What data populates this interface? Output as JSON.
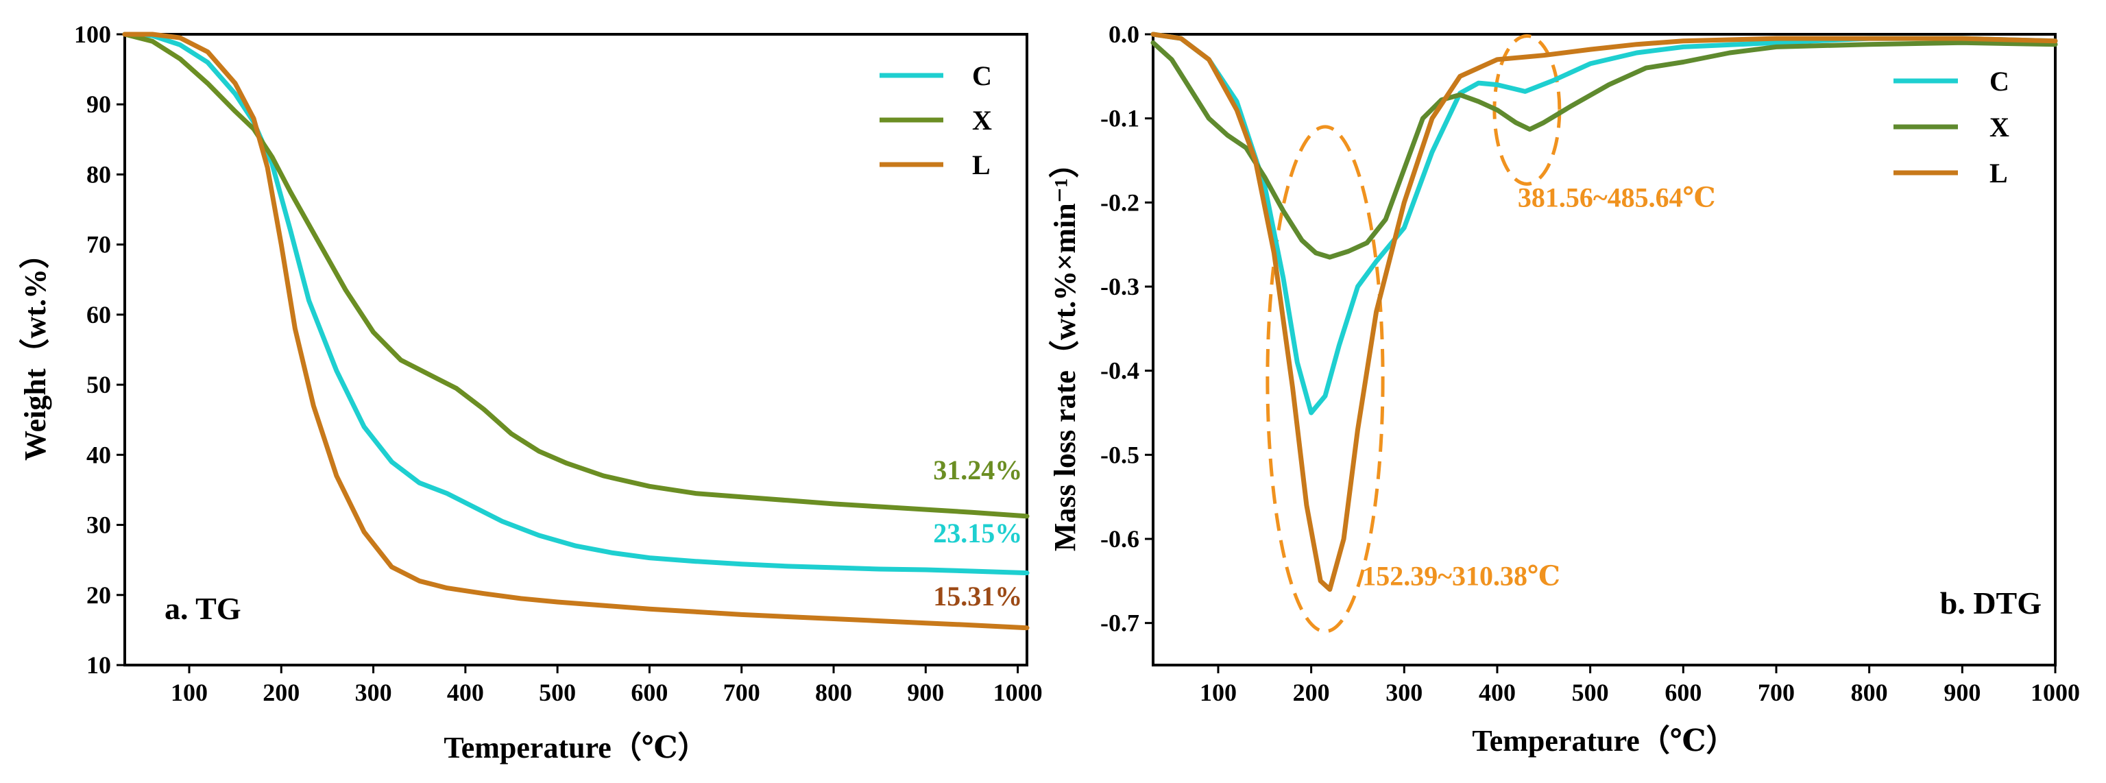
{
  "chart_data": [
    {
      "type": "line",
      "panel_label": "a. TG",
      "xlabel": "Temperature（℃）",
      "ylabel": "Weight（wt.%）",
      "xlim": [
        30,
        1010
      ],
      "ylim": [
        10,
        100
      ],
      "xticks": [
        100,
        200,
        300,
        400,
        500,
        600,
        700,
        800,
        900,
        1000
      ],
      "yticks": [
        10,
        20,
        30,
        40,
        50,
        60,
        70,
        80,
        90,
        100
      ],
      "legend_position": "top-right",
      "series": [
        {
          "name": "C",
          "color": "#1ecfd0",
          "x": [
            30,
            60,
            90,
            120,
            150,
            170,
            190,
            210,
            230,
            260,
            290,
            320,
            350,
            380,
            410,
            440,
            480,
            520,
            560,
            600,
            650,
            700,
            750,
            800,
            850,
            900,
            950,
            1010
          ],
          "y": [
            100,
            99.8,
            98.5,
            96,
            91.5,
            87.5,
            81.5,
            72,
            62,
            52,
            44,
            39,
            36,
            34.5,
            32.5,
            30.5,
            28.5,
            27,
            26,
            25.3,
            24.8,
            24.4,
            24.1,
            23.9,
            23.7,
            23.6,
            23.4,
            23.15
          ]
        },
        {
          "name": "X",
          "color": "#6b8e23",
          "x": [
            30,
            60,
            90,
            120,
            150,
            170,
            190,
            210,
            240,
            270,
            300,
            330,
            360,
            390,
            420,
            450,
            480,
            510,
            550,
            600,
            650,
            700,
            750,
            800,
            850,
            900,
            950,
            1010
          ],
          "y": [
            100,
            99,
            96.5,
            93,
            89,
            86.5,
            82.5,
            77.5,
            70.5,
            63.5,
            57.5,
            53.5,
            51.5,
            49.5,
            46.5,
            43,
            40.5,
            38.8,
            37,
            35.5,
            34.5,
            34,
            33.5,
            33,
            32.6,
            32.2,
            31.8,
            31.24
          ]
        },
        {
          "name": "L",
          "color": "#c8791a",
          "x": [
            30,
            60,
            90,
            120,
            150,
            170,
            185,
            200,
            215,
            235,
            260,
            290,
            320,
            350,
            380,
            420,
            460,
            500,
            550,
            600,
            650,
            700,
            750,
            800,
            850,
            900,
            950,
            1010
          ],
          "y": [
            100,
            100,
            99.5,
            97.5,
            93,
            88,
            81,
            70,
            58,
            47,
            37,
            29,
            24,
            22,
            21,
            20.2,
            19.5,
            19,
            18.5,
            18,
            17.6,
            17.2,
            16.9,
            16.6,
            16.3,
            16,
            15.7,
            15.31
          ]
        }
      ],
      "annotations": [
        {
          "text": "31.24%",
          "color": "#6b8e23",
          "x": 1005,
          "y": 36.5
        },
        {
          "text": "23.15%",
          "color": "#1ecfd0",
          "x": 1005,
          "y": 27.5
        },
        {
          "text": "15.31%",
          "color": "#9c4a16",
          "x": 1005,
          "y": 18.5
        }
      ]
    },
    {
      "type": "line",
      "panel_label": "b. DTG",
      "xlabel": "Temperature（℃）",
      "ylabel": "Mass loss rate（wt.%×min⁻¹）",
      "xlim": [
        30,
        1000
      ],
      "ylim": [
        -0.75,
        0
      ],
      "xticks": [
        100,
        200,
        300,
        400,
        500,
        600,
        700,
        800,
        900,
        1000
      ],
      "yticks": [
        0.0,
        -0.1,
        -0.2,
        -0.3,
        -0.4,
        -0.5,
        -0.6,
        -0.7
      ],
      "ytick_labels": [
        "0.0",
        "-0.1",
        "-0.2",
        "-0.3",
        "-0.4",
        "-0.5",
        "-0.6",
        "-0.7"
      ],
      "legend_position": "top-right",
      "series": [
        {
          "name": "C",
          "color": "#1ecfd0",
          "x": [
            30,
            60,
            90,
            120,
            150,
            170,
            185,
            200,
            215,
            230,
            250,
            270,
            300,
            330,
            360,
            380,
            400,
            430,
            460,
            500,
            550,
            600,
            700,
            800,
            900,
            1000
          ],
          "y": [
            0,
            -0.005,
            -0.03,
            -0.08,
            -0.18,
            -0.29,
            -0.39,
            -0.45,
            -0.43,
            -0.37,
            -0.3,
            -0.27,
            -0.23,
            -0.14,
            -0.07,
            -0.058,
            -0.06,
            -0.068,
            -0.055,
            -0.035,
            -0.022,
            -0.015,
            -0.01,
            -0.005,
            -0.005,
            -0.008
          ]
        },
        {
          "name": "X",
          "color": "#5f8a2e",
          "x": [
            30,
            50,
            70,
            90,
            110,
            130,
            150,
            170,
            190,
            205,
            220,
            240,
            260,
            280,
            300,
            320,
            340,
            360,
            380,
            400,
            420,
            435,
            450,
            480,
            520,
            560,
            600,
            650,
            700,
            800,
            900,
            1000
          ],
          "y": [
            -0.01,
            -0.03,
            -0.065,
            -0.1,
            -0.12,
            -0.135,
            -0.17,
            -0.21,
            -0.245,
            -0.26,
            -0.265,
            -0.258,
            -0.248,
            -0.22,
            -0.16,
            -0.1,
            -0.078,
            -0.072,
            -0.08,
            -0.09,
            -0.105,
            -0.113,
            -0.105,
            -0.085,
            -0.06,
            -0.04,
            -0.033,
            -0.022,
            -0.015,
            -0.012,
            -0.01,
            -0.012
          ]
        },
        {
          "name": "L",
          "color": "#c8791a",
          "x": [
            30,
            60,
            90,
            120,
            140,
            160,
            180,
            195,
            210,
            220,
            235,
            250,
            270,
            300,
            330,
            360,
            400,
            450,
            500,
            550,
            600,
            700,
            800,
            900,
            1000
          ],
          "y": [
            0,
            -0.005,
            -0.03,
            -0.09,
            -0.15,
            -0.26,
            -0.42,
            -0.56,
            -0.65,
            -0.66,
            -0.6,
            -0.47,
            -0.33,
            -0.2,
            -0.1,
            -0.05,
            -0.03,
            -0.025,
            -0.018,
            -0.012,
            -0.008,
            -0.005,
            -0.005,
            -0.005,
            -0.008
          ]
        }
      ],
      "annotations": [
        {
          "text": "152.39~310.38℃",
          "color": "#f0921e",
          "x": 255,
          "y": -0.655
        },
        {
          "text": "381.56~485.64℃",
          "color": "#f0921e",
          "x": 422,
          "y": -0.205
        }
      ],
      "highlight_regions": [
        {
          "name": "main-peak-region",
          "color": "#f0921e",
          "cx": 215,
          "cy": -0.41,
          "rx": 62,
          "ry": 0.3
        },
        {
          "name": "second-peak-region",
          "color": "#f0921e",
          "cx": 432,
          "cy": -0.09,
          "rx": 35,
          "ry": 0.088
        }
      ]
    }
  ]
}
